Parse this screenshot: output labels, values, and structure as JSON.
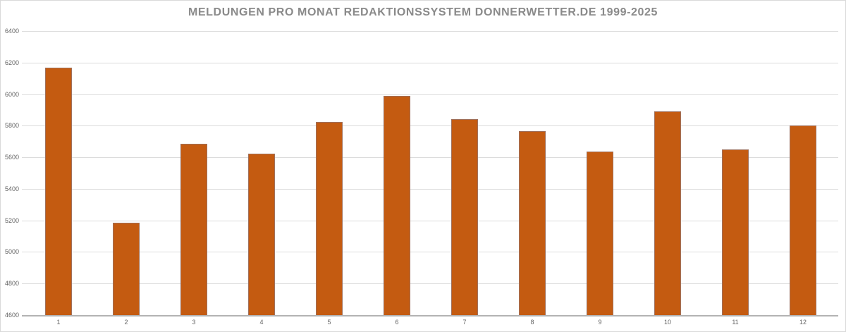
{
  "chart_data": {
    "type": "bar",
    "title": "MELDUNGEN PRO MONAT REDAKTIONSSYSTEM DONNERWETTER.DE 1999-2025",
    "categories": [
      "1",
      "2",
      "3",
      "4",
      "5",
      "6",
      "7",
      "8",
      "9",
      "10",
      "11",
      "12"
    ],
    "values": [
      6170,
      5185,
      5685,
      5625,
      5825,
      5990,
      5840,
      5765,
      5635,
      5890,
      5650,
      5800
    ],
    "xlabel": "",
    "ylabel": "",
    "ylim": [
      4600,
      6400
    ],
    "ytick_step": 200,
    "ytick_labels": [
      "6400",
      "6200",
      "6000",
      "5800",
      "5600",
      "5400",
      "5200",
      "5000",
      "4800",
      "4600"
    ],
    "grid": "horizontal",
    "legend_position": "none",
    "colors": {
      "bar_fill": "#c45b11",
      "bar_border": "#82829b",
      "gridline": "#dcdcdc",
      "axis_line": "#b3b3b3",
      "title_text": "#8a8a8a",
      "tick_text": "#636363",
      "background": "#ffffff"
    }
  }
}
